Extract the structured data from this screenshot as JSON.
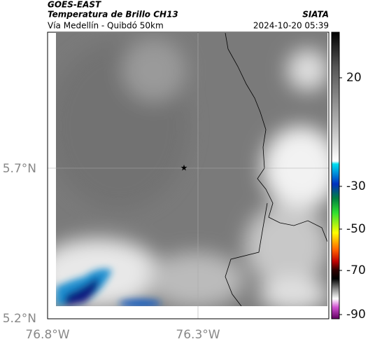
{
  "header": {
    "title": "GOES-EAST",
    "subtitle": "Temperatura de Brillo CH13",
    "location": "Vía Medellín - Quibdó 50km",
    "source": "SIATA",
    "datetime": "2024-10-20 05:39"
  },
  "map": {
    "lat_labels": [
      "5.7°N",
      "5.2°N"
    ],
    "lon_labels": [
      "76.8°W",
      "76.3°W"
    ]
  },
  "colorbar": {
    "ticks": [
      20,
      -30,
      -50,
      -70,
      -90
    ]
  }
}
